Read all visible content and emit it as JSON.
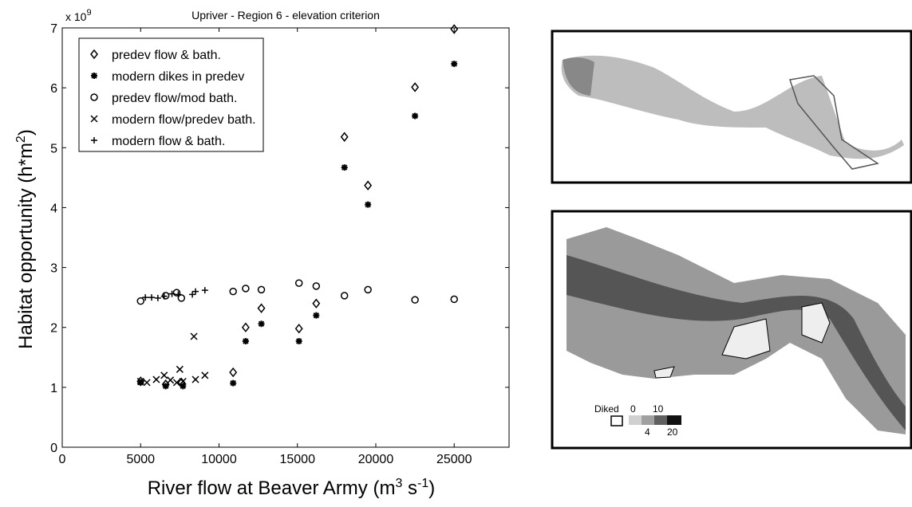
{
  "chart_data": {
    "type": "scatter",
    "title": "Upriver - Region 6 - elevation criterion",
    "x_label": {
      "text": "River flow at Beaver Army (m",
      "sup1": "3",
      "mid": " s",
      "sup2": "-1",
      "end": ")"
    },
    "y_label": {
      "text": "Habitat opportunity (h*m",
      "sup": "2",
      "end": ")"
    },
    "y_multiplier": {
      "text": "x 10",
      "sup": "9"
    },
    "xlim": [
      0,
      28500
    ],
    "xticks": [
      0,
      5000,
      10000,
      15000,
      20000,
      25000
    ],
    "ylim": [
      0,
      7
    ],
    "yticks": [
      0,
      1,
      2,
      3,
      4,
      5,
      6,
      7
    ],
    "legend": "upper left",
    "grid": false,
    "series": [
      {
        "name": "predev flow & bath.",
        "marker": "diamond",
        "color": "#000000",
        "x": [
          5000,
          6600,
          7600,
          10900,
          11700,
          12700,
          15100,
          16200,
          18000,
          19500,
          22500,
          25000
        ],
        "values": [
          1.1,
          1.05,
          1.08,
          1.25,
          2.0,
          2.32,
          1.98,
          2.4,
          5.18,
          4.37,
          6.01,
          6.98
        ]
      },
      {
        "name": "modern dikes in predev",
        "marker": "asterisk",
        "color": "#000000",
        "x": [
          5000,
          6600,
          7700,
          10900,
          11700,
          12700,
          15100,
          16200,
          18000,
          19500,
          22500,
          25000
        ],
        "values": [
          1.08,
          1.02,
          1.02,
          1.07,
          1.77,
          2.06,
          1.77,
          2.2,
          4.67,
          4.05,
          5.53,
          6.4
        ]
      },
      {
        "name": "predev flow/mod bath.",
        "marker": "circle",
        "color": "#000000",
        "x": [
          5000,
          6600,
          7300,
          7600,
          10900,
          11700,
          12700,
          15100,
          16200,
          18000,
          19500,
          22500,
          25000
        ],
        "values": [
          2.44,
          2.53,
          2.58,
          2.49,
          2.6,
          2.65,
          2.63,
          2.74,
          2.69,
          2.53,
          2.63,
          2.46,
          2.47
        ]
      },
      {
        "name": "modern flow/predev bath.",
        "marker": "cross",
        "color": "#000000",
        "x": [
          5000,
          5400,
          6000,
          6500,
          6900,
          7300,
          7500,
          7700,
          8400,
          8500,
          9100
        ],
        "values": [
          1.1,
          1.08,
          1.13,
          1.2,
          1.12,
          1.08,
          1.3,
          1.1,
          1.85,
          1.13,
          1.2
        ]
      },
      {
        "name": "modern flow & bath.",
        "marker": "plus",
        "color": "#000000",
        "x": [
          5300,
          5700,
          6100,
          6500,
          7000,
          7400,
          8300,
          8500,
          9100
        ],
        "values": [
          2.5,
          2.5,
          2.49,
          2.52,
          2.56,
          2.55,
          2.55,
          2.6,
          2.62
        ]
      }
    ],
    "map_legend": {
      "title": "Diked",
      "labels": [
        "0",
        "10",
        "4",
        "20"
      ]
    }
  }
}
